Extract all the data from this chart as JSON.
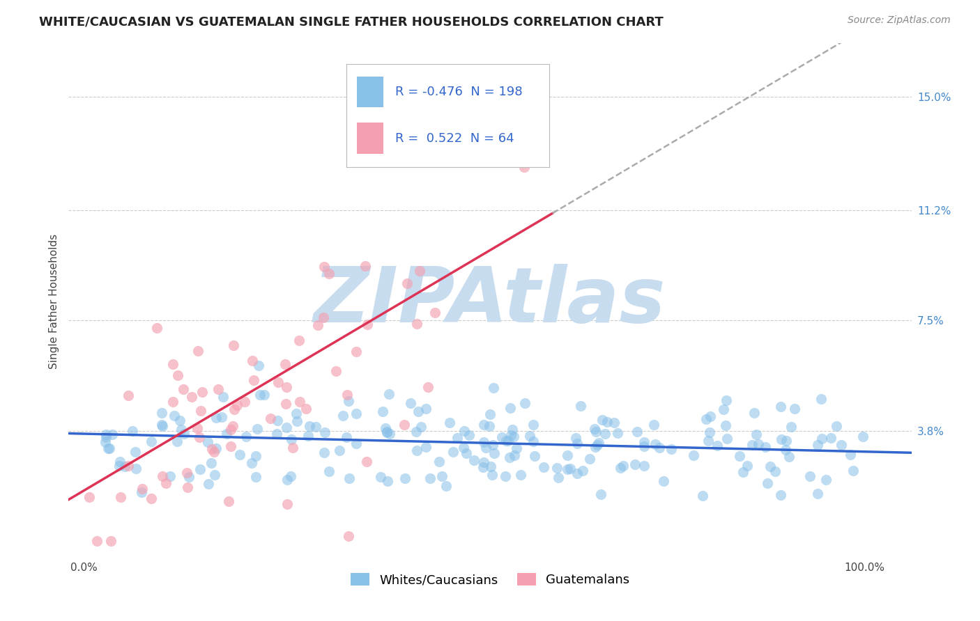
{
  "title": "WHITE/CAUCASIAN VS GUATEMALAN SINGLE FATHER HOUSEHOLDS CORRELATION CHART",
  "source": "Source: ZipAtlas.com",
  "ylabel": "Single Father Households",
  "yticks": [
    0.038,
    0.075,
    0.112,
    0.15
  ],
  "ytick_labels": [
    "3.8%",
    "7.5%",
    "11.2%",
    "15.0%"
  ],
  "xtick_labels": [
    "0.0%",
    "100.0%"
  ],
  "xlim": [
    -0.02,
    1.06
  ],
  "ylim": [
    -0.005,
    0.168
  ],
  "blue_R": -0.476,
  "blue_N": 198,
  "pink_R": 0.522,
  "pink_N": 64,
  "blue_color": "#88C0E8",
  "pink_color": "#F4A0B0",
  "blue_line_color": "#3366CC",
  "pink_line_color": "#DD3355",
  "trend_dashed_color": "#AAAAAA",
  "watermark": "ZIPAtlas",
  "watermark_color": "#C8DCF0",
  "background_color": "#FFFFFF",
  "grid_color": "#CCCCCC",
  "title_fontsize": 13,
  "label_fontsize": 11,
  "tick_fontsize": 11,
  "source_fontsize": 10,
  "blue_intercept": 0.037,
  "blue_slope": -0.006,
  "pink_intercept": 0.018,
  "pink_slope": 0.155
}
